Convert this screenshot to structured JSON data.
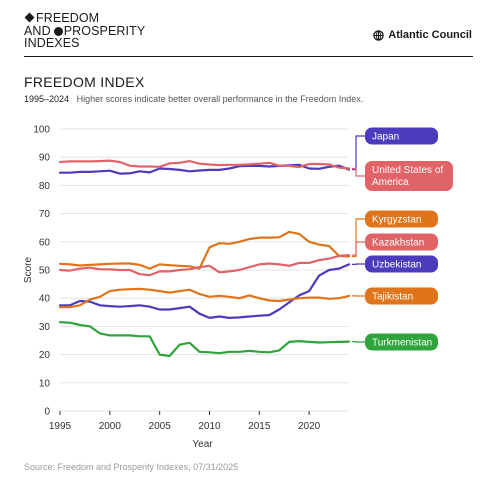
{
  "header": {
    "brand_line1": "FREEDOM",
    "brand_line2_a": "AND",
    "brand_line2_b": "PROSPERITY",
    "brand_line3": "INDEXES",
    "publisher": "Atlantic Council",
    "publisher_icon": "globe-icon"
  },
  "title": "FREEDOM INDEX",
  "subtitle": {
    "range": "1995–2024",
    "description": "Higher scores indicate better overall performance in the Freedom Index."
  },
  "source": "Source: Freedom and Prosperity Indexes, 07/31/2025",
  "chart_data": {
    "type": "line",
    "xlabel": "Year",
    "ylabel": "Score",
    "ylim": [
      0,
      100
    ],
    "xlim": [
      1995,
      2024
    ],
    "yticks": [
      0,
      10,
      20,
      30,
      40,
      50,
      60,
      70,
      80,
      90,
      100
    ],
    "xticks": [
      1995,
      2000,
      2005,
      2010,
      2015,
      2020
    ],
    "grid": true,
    "legend": "right, labels pinned at series end",
    "x": [
      1995,
      1996,
      1997,
      1998,
      1999,
      2000,
      2001,
      2002,
      2003,
      2004,
      2005,
      2006,
      2007,
      2008,
      2009,
      2010,
      2011,
      2012,
      2013,
      2014,
      2015,
      2016,
      2017,
      2018,
      2019,
      2020,
      2021,
      2022,
      2023,
      2024
    ],
    "series": [
      {
        "name": "Japan",
        "color": "#4b3bbd",
        "values": [
          84.5,
          84.5,
          84.8,
          84.8,
          85.0,
          85.2,
          84.2,
          84.3,
          85.0,
          84.6,
          86.0,
          85.8,
          85.5,
          85.0,
          85.3,
          85.5,
          85.5,
          86.0,
          86.8,
          86.9,
          86.9,
          86.7,
          86.9,
          87.1,
          87.3,
          86.0,
          85.9,
          86.6,
          87.0,
          85.6
        ]
      },
      {
        "name": "United States of America",
        "color": "#e06367",
        "values": [
          88.3,
          88.5,
          88.5,
          88.5,
          88.6,
          88.8,
          88.3,
          87.0,
          86.7,
          86.7,
          86.6,
          87.8,
          88.0,
          88.6,
          87.7,
          87.4,
          87.2,
          87.3,
          87.3,
          87.5,
          87.7,
          88.0,
          87.0,
          86.9,
          86.5,
          87.6,
          87.6,
          87.4,
          86.3,
          86.0
        ]
      },
      {
        "name": "Kyrgyzstan",
        "color": "#e0741a",
        "values": [
          52.2,
          52.0,
          51.6,
          51.8,
          52.0,
          52.2,
          52.3,
          52.3,
          51.8,
          50.5,
          52.0,
          51.7,
          51.5,
          51.3,
          50.5,
          58.0,
          59.5,
          59.3,
          60.0,
          61.0,
          61.5,
          61.5,
          61.6,
          63.5,
          62.8,
          60.0,
          59.0,
          58.5,
          55.0,
          54.8
        ]
      },
      {
        "name": "Kazakhstan",
        "color": "#e06367",
        "values": [
          50.0,
          49.8,
          50.5,
          50.8,
          50.3,
          50.2,
          50.0,
          50.0,
          48.5,
          48.2,
          49.5,
          49.5,
          50.0,
          50.3,
          51.0,
          51.5,
          49.2,
          49.5,
          50.0,
          51.0,
          52.0,
          52.3,
          52.0,
          51.5,
          52.5,
          52.5,
          53.5,
          54.0,
          55.0,
          55.3
        ]
      },
      {
        "name": "Uzbekistan",
        "color": "#4b3bbd",
        "values": [
          37.5,
          37.5,
          39.0,
          38.8,
          37.5,
          37.2,
          37.0,
          37.2,
          37.5,
          37.0,
          36.0,
          36.0,
          36.5,
          37.0,
          34.5,
          33.0,
          33.5,
          33.0,
          33.2,
          33.5,
          33.8,
          34.0,
          36.0,
          38.5,
          41.0,
          42.5,
          48.0,
          50.0,
          50.5,
          52.0
        ]
      },
      {
        "name": "Tajikistan",
        "color": "#e0741a",
        "values": [
          36.8,
          36.8,
          37.5,
          39.5,
          40.5,
          42.5,
          43.0,
          43.2,
          43.3,
          43.0,
          42.5,
          42.0,
          42.5,
          43.0,
          41.5,
          40.5,
          40.8,
          40.5,
          40.0,
          41.0,
          40.0,
          39.2,
          39.0,
          39.5,
          40.0,
          40.2,
          40.2,
          39.8,
          40.0,
          40.8
        ]
      },
      {
        "name": "Turkmenistan",
        "color": "#2ea43a",
        "values": [
          31.5,
          31.3,
          30.5,
          30.0,
          27.5,
          26.8,
          26.8,
          26.8,
          26.5,
          26.5,
          20.0,
          19.5,
          23.5,
          24.2,
          21.0,
          20.8,
          20.5,
          21.0,
          21.0,
          21.3,
          21.0,
          20.8,
          21.5,
          24.5,
          24.8,
          24.5,
          24.3,
          24.4,
          24.5,
          24.6
        ]
      }
    ]
  }
}
